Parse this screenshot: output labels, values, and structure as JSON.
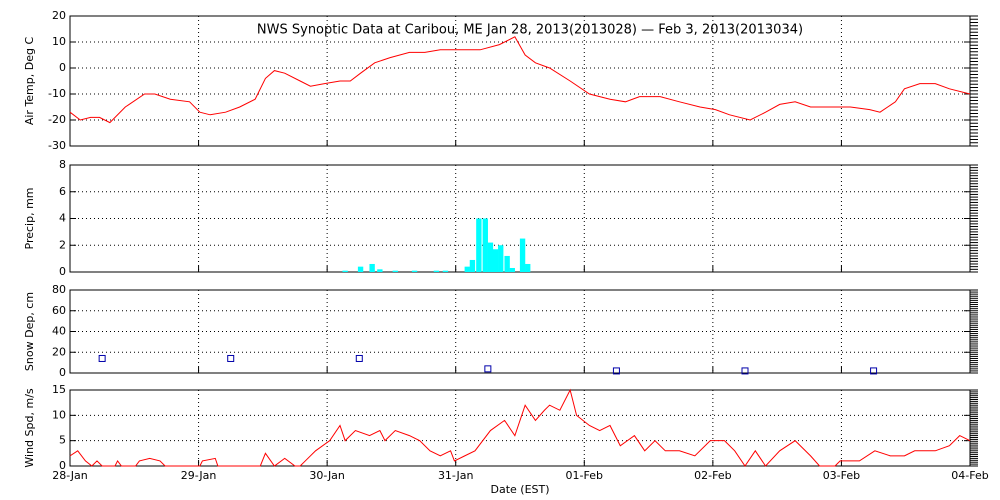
{
  "chart_data": [
    {
      "type": "line",
      "title": "NWS Synoptic Data at Caribou, ME   Jan 28, 2013(2013028) — Feb  3, 2013(2013034)",
      "ylabel": "Air Temp, Deg C",
      "grid": true,
      "xlim": [
        0,
        7
      ],
      "xticks": [
        0,
        1,
        2,
        3,
        4,
        5,
        6,
        7
      ],
      "ylim": [
        -30,
        20
      ],
      "yticks": [
        -30,
        -20,
        -10,
        0,
        10,
        20
      ],
      "x": [
        0,
        0.08,
        0.16,
        0.23,
        0.31,
        0.43,
        0.58,
        0.66,
        0.78,
        0.93,
        1.01,
        1.09,
        1.21,
        1.32,
        1.44,
        1.52,
        1.59,
        1.67,
        1.79,
        1.87,
        1.98,
        2.1,
        2.18,
        2.26,
        2.37,
        2.49,
        2.64,
        2.76,
        2.88,
        3.03,
        3.19,
        3.34,
        3.46,
        3.54,
        3.62,
        3.73,
        3.89,
        4.04,
        4.2,
        4.32,
        4.43,
        4.59,
        4.74,
        4.9,
        5.02,
        5.13,
        5.29,
        5.41,
        5.52,
        5.64,
        5.76,
        5.91,
        6.07,
        6.22,
        6.3,
        6.42,
        6.49,
        6.61,
        6.73,
        6.84,
        7.0
      ],
      "series": [
        {
          "color": "#ff0000",
          "values": [
            -17,
            -20,
            -19,
            -19,
            -21,
            -15,
            -10,
            -10,
            -12,
            -13,
            -17,
            -18,
            -17,
            -15,
            -12,
            -4,
            -1,
            -2,
            -5,
            -7,
            -6,
            -5,
            -5,
            -2,
            2,
            4,
            6,
            6,
            7,
            7,
            7,
            9,
            12,
            5,
            2,
            0,
            -5,
            -10,
            -12,
            -13,
            -11,
            -11,
            -13,
            -15,
            -16,
            -18,
            -20,
            -17,
            -14,
            -13,
            -15,
            -15,
            -15,
            -16,
            -17,
            -13,
            -8,
            -6,
            -6,
            -8,
            -10
          ]
        }
      ]
    },
    {
      "type": "bar",
      "ylabel": "Precip, mm",
      "grid": true,
      "xlim": [
        0,
        7
      ],
      "xticks": [
        0,
        1,
        2,
        3,
        4,
        5,
        6,
        7
      ],
      "ylim": [
        0,
        8
      ],
      "yticks": [
        0,
        2,
        4,
        6,
        8
      ],
      "x": [
        2.14,
        2.26,
        2.35,
        2.41,
        2.53,
        2.68,
        2.85,
        2.92,
        3.09,
        3.13,
        3.18,
        3.23,
        3.27,
        3.31,
        3.35,
        3.4,
        3.44,
        3.52,
        3.56
      ],
      "series": [
        {
          "color": "#00ffff",
          "values": [
            0.1,
            0.4,
            0.6,
            0.2,
            0.1,
            0.1,
            0.1,
            0.1,
            0.4,
            0.9,
            4,
            4,
            2.2,
            1.7,
            2.0,
            1.2,
            0.3,
            2.5,
            0.6
          ]
        }
      ]
    },
    {
      "type": "scatter",
      "ylabel": "Snow Dep, cm",
      "grid": true,
      "xlim": [
        0,
        7
      ],
      "xticks": [
        0,
        1,
        2,
        3,
        4,
        5,
        6,
        7
      ],
      "ylim": [
        0,
        80
      ],
      "yticks": [
        0,
        20,
        40,
        60,
        80
      ],
      "x": [
        0.25,
        1.25,
        2.25,
        3.25,
        4.25,
        5.25,
        6.25
      ],
      "series": [
        {
          "color": "#0000aa",
          "values": [
            14,
            14,
            14,
            4,
            2,
            2,
            2
          ]
        }
      ]
    },
    {
      "type": "line",
      "ylabel": "Wind Spd, m/s",
      "xlabel": "Date (EST)",
      "grid": true,
      "xlim": [
        0,
        7
      ],
      "xticks": [
        {
          "value": 0,
          "label": "28-Jan"
        },
        {
          "value": 1,
          "label": "29-Jan"
        },
        {
          "value": 2,
          "label": "30-Jan"
        },
        {
          "value": 3,
          "label": "31-Jan"
        },
        {
          "value": 4,
          "label": "01-Feb"
        },
        {
          "value": 5,
          "label": "02-Feb"
        },
        {
          "value": 6,
          "label": "03-Feb"
        },
        {
          "value": 7,
          "label": "04-Feb"
        }
      ],
      "ylim": [
        0,
        15
      ],
      "yticks": [
        0,
        5,
        10,
        15
      ],
      "x": [
        0,
        0.06,
        0.12,
        0.17,
        0.21,
        0.25,
        0.35,
        0.37,
        0.4,
        0.51,
        0.54,
        0.62,
        0.7,
        0.74,
        1.01,
        1.03,
        1.13,
        1.15,
        1.48,
        1.52,
        1.59,
        1.67,
        1.75,
        1.79,
        1.83,
        1.91,
        2.02,
        2.1,
        2.14,
        2.22,
        2.33,
        2.41,
        2.45,
        2.53,
        2.64,
        2.72,
        2.8,
        2.88,
        2.96,
        2.99,
        3.07,
        3.15,
        3.27,
        3.38,
        3.46,
        3.54,
        3.62,
        3.69,
        3.73,
        3.81,
        3.89,
        3.94,
        4.04,
        4.12,
        4.2,
        4.28,
        4.39,
        4.47,
        4.55,
        4.63,
        4.74,
        4.86,
        4.98,
        5.09,
        5.17,
        5.25,
        5.33,
        5.41,
        5.52,
        5.64,
        5.76,
        5.83,
        5.95,
        5.99,
        6.14,
        6.26,
        6.38,
        6.49,
        6.57,
        6.73,
        6.84,
        6.92,
        7.0
      ],
      "series": [
        {
          "color": "#ff0000",
          "values": [
            2,
            3,
            1,
            0,
            1,
            0,
            0,
            1,
            0,
            0,
            1,
            1.5,
            1,
            0,
            0,
            1,
            1.5,
            0,
            0,
            2.5,
            0,
            1.5,
            0,
            0,
            1,
            3,
            5,
            8,
            5,
            7,
            6,
            7,
            5,
            7,
            6,
            5,
            3,
            2,
            3,
            1,
            2,
            3,
            7,
            9,
            6,
            12,
            9,
            11,
            12,
            11,
            15,
            10,
            8,
            7,
            8,
            4,
            6,
            3,
            5,
            3,
            3,
            2,
            5,
            5,
            3,
            0,
            3,
            0,
            3,
            5,
            2,
            0,
            0,
            1,
            1,
            3,
            2,
            2,
            3,
            3,
            4,
            6,
            5
          ]
        }
      ]
    }
  ]
}
